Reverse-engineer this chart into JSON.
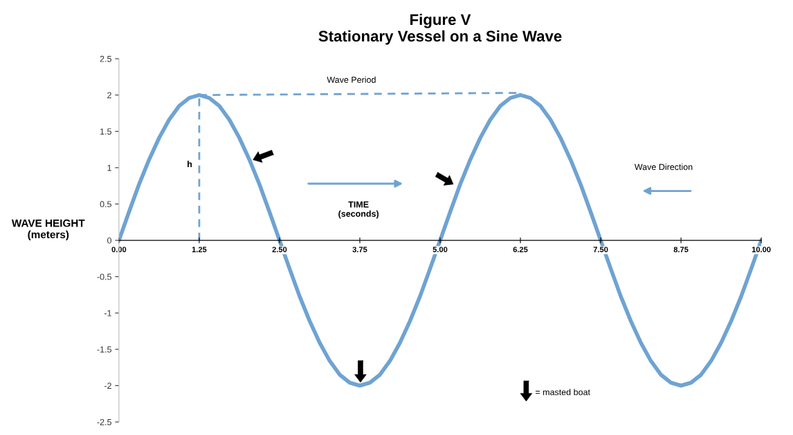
{
  "chart_data": {
    "type": "line",
    "title": "Figure V\nStationary Vessel on a Sine Wave",
    "ylabel": "WAVE HEIGHT\n(meters)",
    "xlim": [
      0,
      10
    ],
    "ylim": [
      -2.5,
      2.5
    ],
    "xticks": [
      {
        "value": 0,
        "label": "0.00"
      },
      {
        "value": 1.25,
        "label": "1.25"
      },
      {
        "value": 2.5,
        "label": "2.50"
      },
      {
        "value": 3.75,
        "label": "3.75"
      },
      {
        "value": 5,
        "label": "5.00"
      },
      {
        "value": 6.25,
        "label": "6.25"
      },
      {
        "value": 7.5,
        "label": "7.50"
      },
      {
        "value": 8.75,
        "label": "8.75"
      },
      {
        "value": 10,
        "label": "10.00"
      }
    ],
    "yticks": [
      -2.5,
      -2,
      -1.5,
      -1,
      -0.5,
      0,
      0.5,
      1,
      1.5,
      2,
      2.5
    ],
    "grid": false,
    "marker": "none",
    "series": [
      {
        "color": "#6fa3d2",
        "line_style": "solid",
        "x": [
          0,
          0.15625,
          0.3125,
          0.46875,
          0.625,
          0.78125,
          0.9375,
          1.09375,
          1.25,
          1.40625,
          1.5625,
          1.71875,
          1.875,
          2.03125,
          2.1875,
          2.34375,
          2.5,
          2.65625,
          2.8125,
          2.96875,
          3.125,
          3.28125,
          3.4375,
          3.59375,
          3.75,
          3.90625,
          4.0625,
          4.21875,
          4.375,
          4.53125,
          4.6875,
          4.84375,
          5,
          5.15625,
          5.3125,
          5.46875,
          5.625,
          5.78125,
          5.9375,
          6.09375,
          6.25,
          6.40625,
          6.5625,
          6.71875,
          6.875,
          7.03125,
          7.1875,
          7.34375,
          7.5,
          7.65625,
          7.8125,
          7.96875,
          8.125,
          8.28125,
          8.4375,
          8.59375,
          8.75,
          8.90625,
          9.0625,
          9.21875,
          9.375,
          9.53125,
          9.6875,
          9.84375,
          10
        ],
        "values": [
          0,
          0.39,
          0.77,
          1.11,
          1.41,
          1.66,
          1.85,
          1.96,
          2,
          1.96,
          1.85,
          1.66,
          1.41,
          1.11,
          0.77,
          0.39,
          0,
          -0.39,
          -0.77,
          -1.11,
          -1.41,
          -1.66,
          -1.85,
          -1.96,
          -2,
          -1.96,
          -1.85,
          -1.66,
          -1.41,
          -1.11,
          -0.77,
          -0.39,
          0,
          0.39,
          0.77,
          1.11,
          1.41,
          1.66,
          1.85,
          1.96,
          2,
          1.96,
          1.85,
          1.66,
          1.41,
          1.11,
          0.77,
          0.39,
          0,
          -0.39,
          -0.77,
          -1.11,
          -1.41,
          -1.66,
          -1.85,
          -1.96,
          -2,
          -1.96,
          -1.85,
          -1.66,
          -1.41,
          -1.11,
          -0.77,
          -0.39,
          0
        ]
      },
      {
        "color": "#6fa3d2",
        "line_style": "dashed",
        "x": [
          1.25,
          1.25
        ],
        "values": [
          0,
          2
        ]
      },
      {
        "color": "#6fa3d2",
        "line_style": "dashed",
        "x": [
          1.25,
          6.25
        ],
        "values": [
          2,
          2.03
        ]
      }
    ],
    "annotations": [
      "Wave Period",
      "h",
      "TIME\n(seconds)",
      "Wave Direction",
      "= masted boat"
    ]
  }
}
